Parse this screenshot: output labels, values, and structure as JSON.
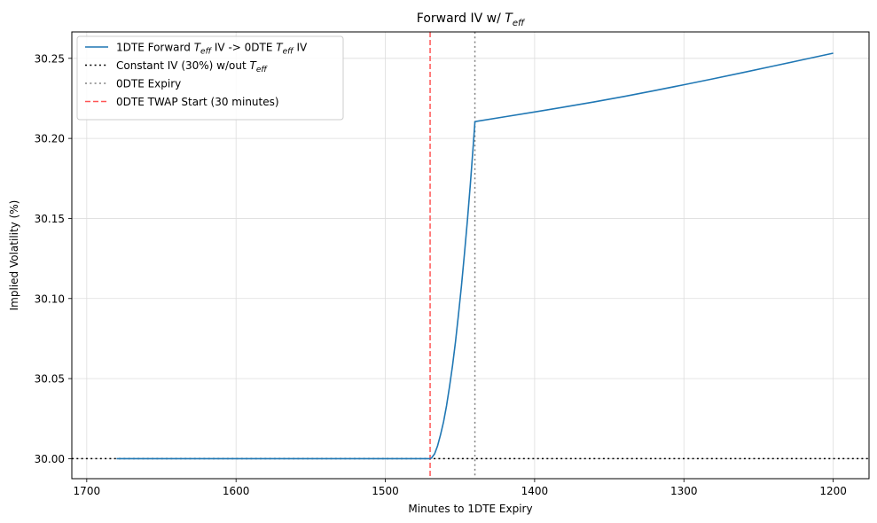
{
  "chart_data": {
    "type": "line",
    "title": {
      "main": "Forward IV w/ ",
      "var": "T",
      "sub": "eff"
    },
    "xlabel": "Minutes to 1DTE Expiry",
    "ylabel": "Implied Volatility (%)",
    "xlim": [
      1710,
      1176
    ],
    "ylim": [
      29.9875,
      30.2665
    ],
    "x_reversed": true,
    "grid": true,
    "xticks": [
      1700,
      1600,
      1500,
      1400,
      1300,
      1200
    ],
    "yticks": [
      30.0,
      30.05,
      30.1,
      30.15,
      30.2,
      30.25
    ],
    "xtick_labels": [
      "1700",
      "1600",
      "1500",
      "1400",
      "1300",
      "1200"
    ],
    "ytick_labels": [
      "30.00",
      "30.05",
      "30.10",
      "30.15",
      "30.20",
      "30.25"
    ],
    "legend_position": "top-left",
    "legend": [
      {
        "parts": [
          [
            "1DTE Forward ",
            "n"
          ],
          [
            "T",
            "i"
          ],
          [
            "eff",
            "s"
          ],
          [
            " IV -> 0DTE ",
            "n"
          ],
          [
            "T",
            "i"
          ],
          [
            "eff",
            "s"
          ],
          [
            " IV",
            "n"
          ]
        ]
      },
      {
        "parts": [
          [
            "Constant IV (30%) w/out ",
            "n"
          ],
          [
            "T",
            "i"
          ],
          [
            "eff",
            "s"
          ]
        ]
      },
      {
        "parts": [
          [
            "0DTE Expiry",
            "n"
          ]
        ]
      },
      {
        "parts": [
          [
            "0DTE TWAP Start (30 minutes)",
            "n"
          ]
        ]
      }
    ],
    "series": [
      {
        "color": "#1f77b4",
        "style": "solid",
        "x": [
          1680,
          1470,
          1469,
          1467,
          1465,
          1463,
          1461,
          1459,
          1457,
          1455,
          1453,
          1451,
          1449,
          1447,
          1445,
          1443,
          1441,
          1440,
          1440,
          1420,
          1400,
          1380,
          1360,
          1340,
          1320,
          1300,
          1280,
          1260,
          1240,
          1220,
          1200
        ],
        "y": [
          30.0,
          30.0,
          30.0005,
          30.003,
          30.008,
          30.015,
          30.023,
          30.033,
          30.045,
          30.058,
          30.073,
          30.09,
          30.108,
          30.128,
          30.149,
          30.172,
          30.197,
          30.21,
          30.2105,
          30.2135,
          30.2165,
          30.2196,
          30.2228,
          30.2262,
          30.2298,
          30.2335,
          30.2373,
          30.2412,
          30.2452,
          30.2492,
          30.2532
        ]
      }
    ],
    "hlines": [
      {
        "y": 30.0,
        "color": "#000000",
        "style": "dotted"
      }
    ],
    "vlines": [
      {
        "x": 1440,
        "color": "#808080",
        "style": "dotted"
      },
      {
        "x": 1470,
        "color": "#ff5555",
        "style": "dashed"
      }
    ]
  }
}
